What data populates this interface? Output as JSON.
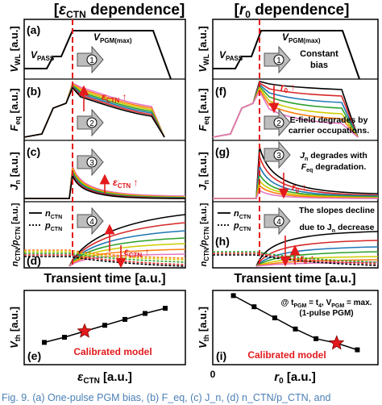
{
  "headers": {
    "left": [
      "[",
      "ε",
      "CTN",
      " dependence]"
    ],
    "right": [
      "[",
      "r",
      "0",
      " dependence]"
    ]
  },
  "panel_letters": {
    "a": "(a)",
    "b": "(b)",
    "c": "(c)",
    "d": "(d)",
    "e": "(e)",
    "f": "(f)",
    "g": "(g)",
    "h": "(h)",
    "i": "(i)"
  },
  "ylabels": {
    "vwl": [
      "V",
      "WL",
      " [a.u.]"
    ],
    "feq": [
      "F",
      "eq",
      " [a.u.]"
    ],
    "jn": [
      "J",
      "n",
      " [a.u.]"
    ],
    "ratio": [
      "n",
      "CTN",
      "/p",
      "CTN",
      " [a.u.]"
    ],
    "vth": [
      "V",
      "th",
      " [a.u.]"
    ]
  },
  "waveform": {
    "vpass": [
      "V",
      "PASS"
    ],
    "vpgm": [
      "V",
      "PGM(max)"
    ],
    "constant_bias": [
      "Constant",
      "bias"
    ]
  },
  "legend": {
    "n": [
      "n",
      "CTN"
    ],
    "p": [
      "p",
      "CTN"
    ]
  },
  "step_numbers": [
    "1",
    "2",
    "3",
    "4"
  ],
  "sensitivity": {
    "eps": [
      "ε",
      "CTN",
      " ↑"
    ],
    "r0": [
      "r",
      "0",
      " ↑"
    ]
  },
  "notes": {
    "f": [
      "E-field degrades by",
      "carrier occupations."
    ],
    "g1": [
      "J",
      "n",
      " degrades with"
    ],
    "g2": [
      "F",
      "eq",
      " degradation."
    ],
    "h1": "The slopes decline",
    "h2": [
      "due to J",
      "n",
      " decrease"
    ]
  },
  "xlabel": "Transient time [a.u.]",
  "bottom": {
    "e_xlabel": [
      "ε",
      "CTN",
      " [a.u.]"
    ],
    "i_xlabel": [
      "r",
      "0",
      " [a.u.]"
    ],
    "calibrated": "Calibrated model",
    "condition1": [
      "@ t",
      "PGM",
      " = t",
      "4",
      ", V",
      "PGM",
      " = max."
    ],
    "condition2": "(1-pulse PGM)",
    "zero": "0"
  },
  "caption": "Fig. 9.   (a) One-pulse PGM bias, (b) F_eq, (c) J_n, (d) n_CTN/p_CTN, and",
  "series_colors": [
    "#000000",
    "#d62728",
    "#1f77b4",
    "#2ca02c",
    "#cccc00",
    "#ff7f0e",
    "#e377c2"
  ],
  "accent": "#e31a1c",
  "chart_data": [
    {
      "type": "line",
      "panel": "e",
      "xlabel": "ε_CTN [a.u.]",
      "ylabel": "V_th [a.u.]",
      "x": [
        1,
        2,
        3,
        4,
        5,
        6,
        7
      ],
      "values": [
        0.3,
        0.37,
        0.45,
        0.53,
        0.61,
        0.69,
        0.76
      ],
      "calibrated_index": 2,
      "xlim": [
        0,
        8
      ],
      "ylim": [
        0,
        1
      ]
    },
    {
      "type": "line",
      "panel": "i",
      "xlabel": "r_0 [a.u.]",
      "ylabel": "V_th [a.u.]",
      "x": [
        1,
        2,
        3,
        4,
        5,
        6,
        7
      ],
      "values": [
        0.93,
        0.78,
        0.63,
        0.48,
        0.35,
        0.29,
        0.2
      ],
      "calibrated_index": 5,
      "xlim": [
        0,
        8
      ],
      "ylim": [
        0,
        1
      ]
    }
  ]
}
